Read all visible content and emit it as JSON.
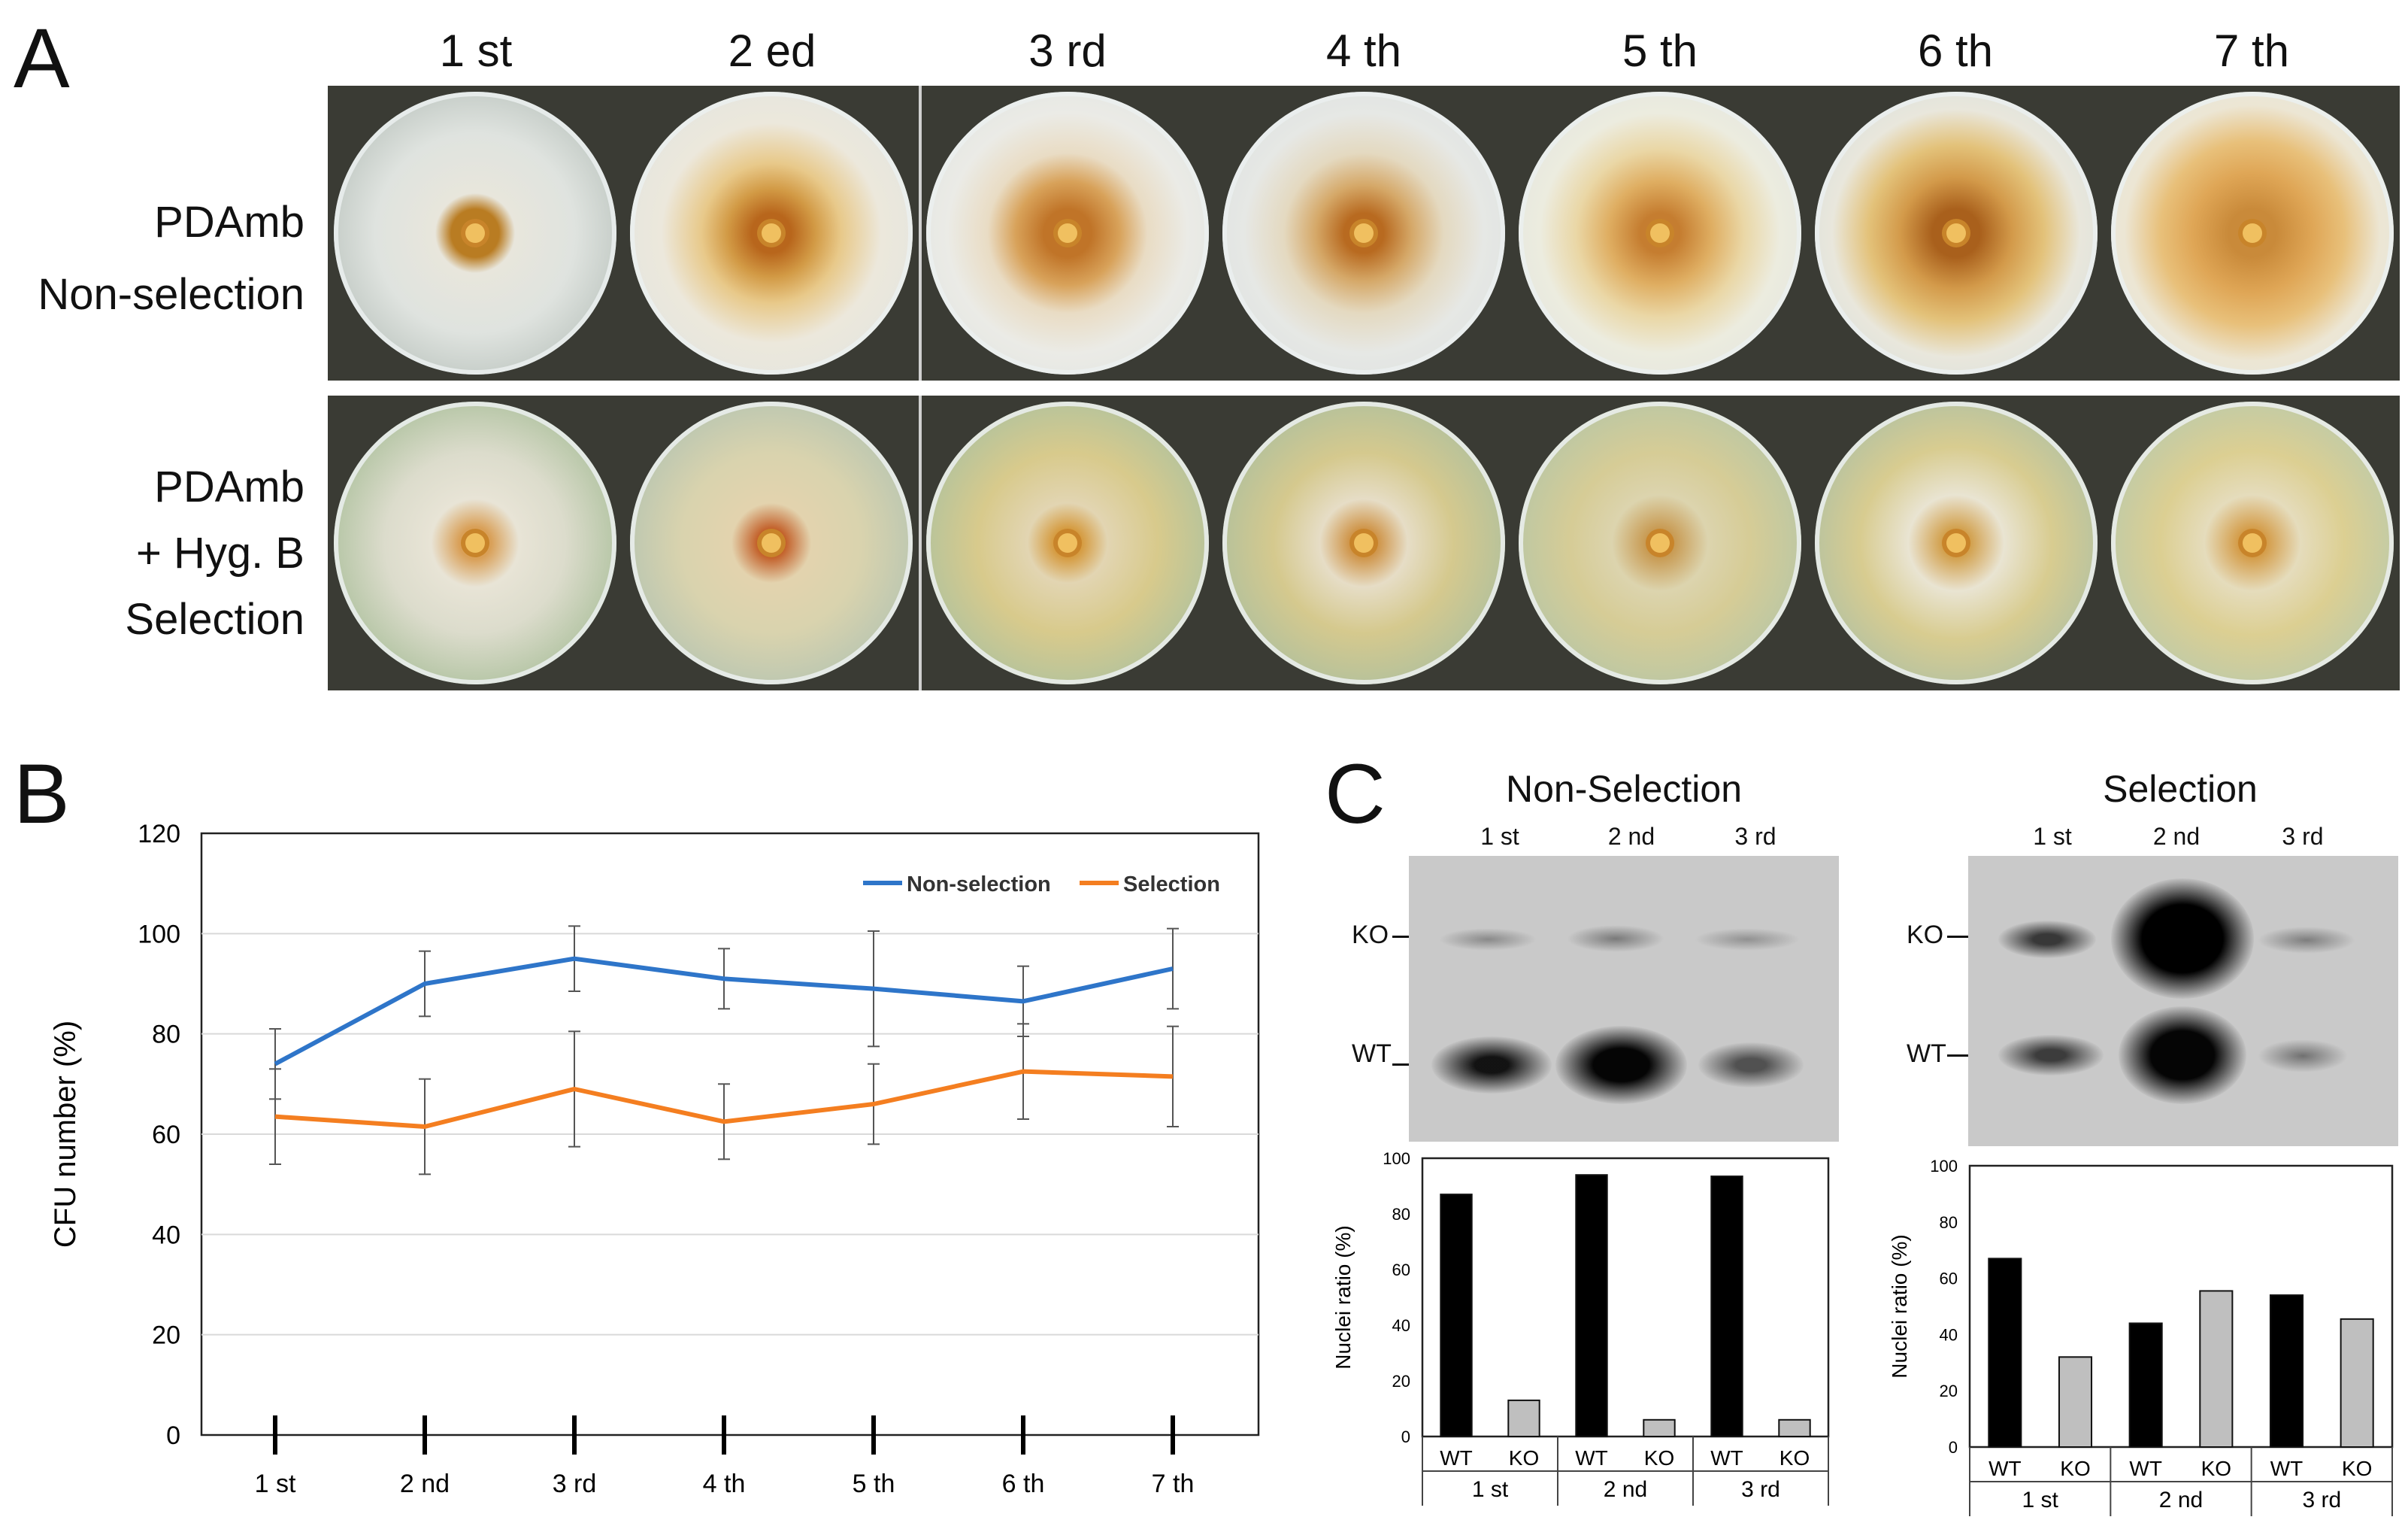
{
  "panels": {
    "a": "A",
    "b": "B",
    "c": "C"
  },
  "panel_a": {
    "columns": [
      "1 st",
      "2 ed",
      "3 rd",
      "4 th",
      "5 th",
      "6 th",
      "7 th"
    ],
    "rows": [
      {
        "label_lines": [
          "PDAmb",
          "Non-selection"
        ]
      },
      {
        "label_lines": [
          "PDAmb",
          "+ Hyg. B",
          "Selection"
        ]
      }
    ]
  },
  "chart_data": [
    {
      "type": "line",
      "panel": "B",
      "categories": [
        "1 st",
        "2 nd",
        "3 rd",
        "4 th",
        "5 th",
        "6 th",
        "7 th"
      ],
      "series": [
        {
          "name": "Non-selection",
          "color": "#2e75c9",
          "values": [
            74,
            90,
            95,
            91,
            89,
            86.5,
            93
          ],
          "errors": [
            7,
            6.5,
            6.5,
            6,
            11.5,
            7,
            8
          ]
        },
        {
          "name": "Selection",
          "color": "#f47e20",
          "values": [
            63.5,
            61.5,
            69,
            62.5,
            66,
            72.5,
            71.5
          ],
          "errors": [
            9.5,
            9.5,
            11.5,
            7.5,
            8,
            9.5,
            10
          ]
        }
      ],
      "xlabel": "",
      "ylabel": "CFU number (%)",
      "ylim": [
        0,
        120
      ],
      "yticks": [
        "0",
        "20",
        "40",
        "60",
        "80",
        "100",
        "120"
      ],
      "grid": true,
      "legend": "top-right"
    },
    {
      "type": "bar",
      "panel": "C-left",
      "title": "Non-Selection",
      "groups": [
        "1 st",
        "2 nd",
        "3 rd"
      ],
      "bars": [
        "WT",
        "KO",
        "WT",
        "KO",
        "WT",
        "KO"
      ],
      "values": [
        87,
        13,
        94,
        6,
        93.5,
        6
      ],
      "colors": [
        "#000000",
        "#bfbfbf",
        "#000000",
        "#bfbfbf",
        "#000000",
        "#bfbfbf"
      ],
      "ylabel": "Nuclei ratio (%)",
      "ylim": [
        0,
        100
      ],
      "yticks": [
        "0",
        "20",
        "40",
        "60",
        "80",
        "100"
      ]
    },
    {
      "type": "bar",
      "panel": "C-right",
      "title": "Selection",
      "groups": [
        "1 st",
        "2 nd",
        "3 rd"
      ],
      "bars": [
        "WT",
        "KO",
        "WT",
        "KO",
        "WT",
        "KO"
      ],
      "values": [
        67,
        32,
        44,
        55.5,
        54,
        45.5
      ],
      "colors": [
        "#000000",
        "#bfbfbf",
        "#000000",
        "#bfbfbf",
        "#000000",
        "#bfbfbf"
      ],
      "ylabel": "Nuclei ratio (%)",
      "ylim": [
        0,
        100
      ],
      "yticks": [
        "0",
        "20",
        "40",
        "60",
        "80",
        "100"
      ]
    }
  ],
  "panel_c": {
    "blot_left": {
      "title": "Non-Selection",
      "lanes": [
        "1 st",
        "2 nd",
        "3 rd"
      ],
      "markers": [
        "KO",
        "WT"
      ]
    },
    "blot_right": {
      "title": "Selection",
      "lanes": [
        "1 st",
        "2 nd",
        "3 rd"
      ],
      "markers": [
        "KO",
        "WT"
      ]
    }
  }
}
